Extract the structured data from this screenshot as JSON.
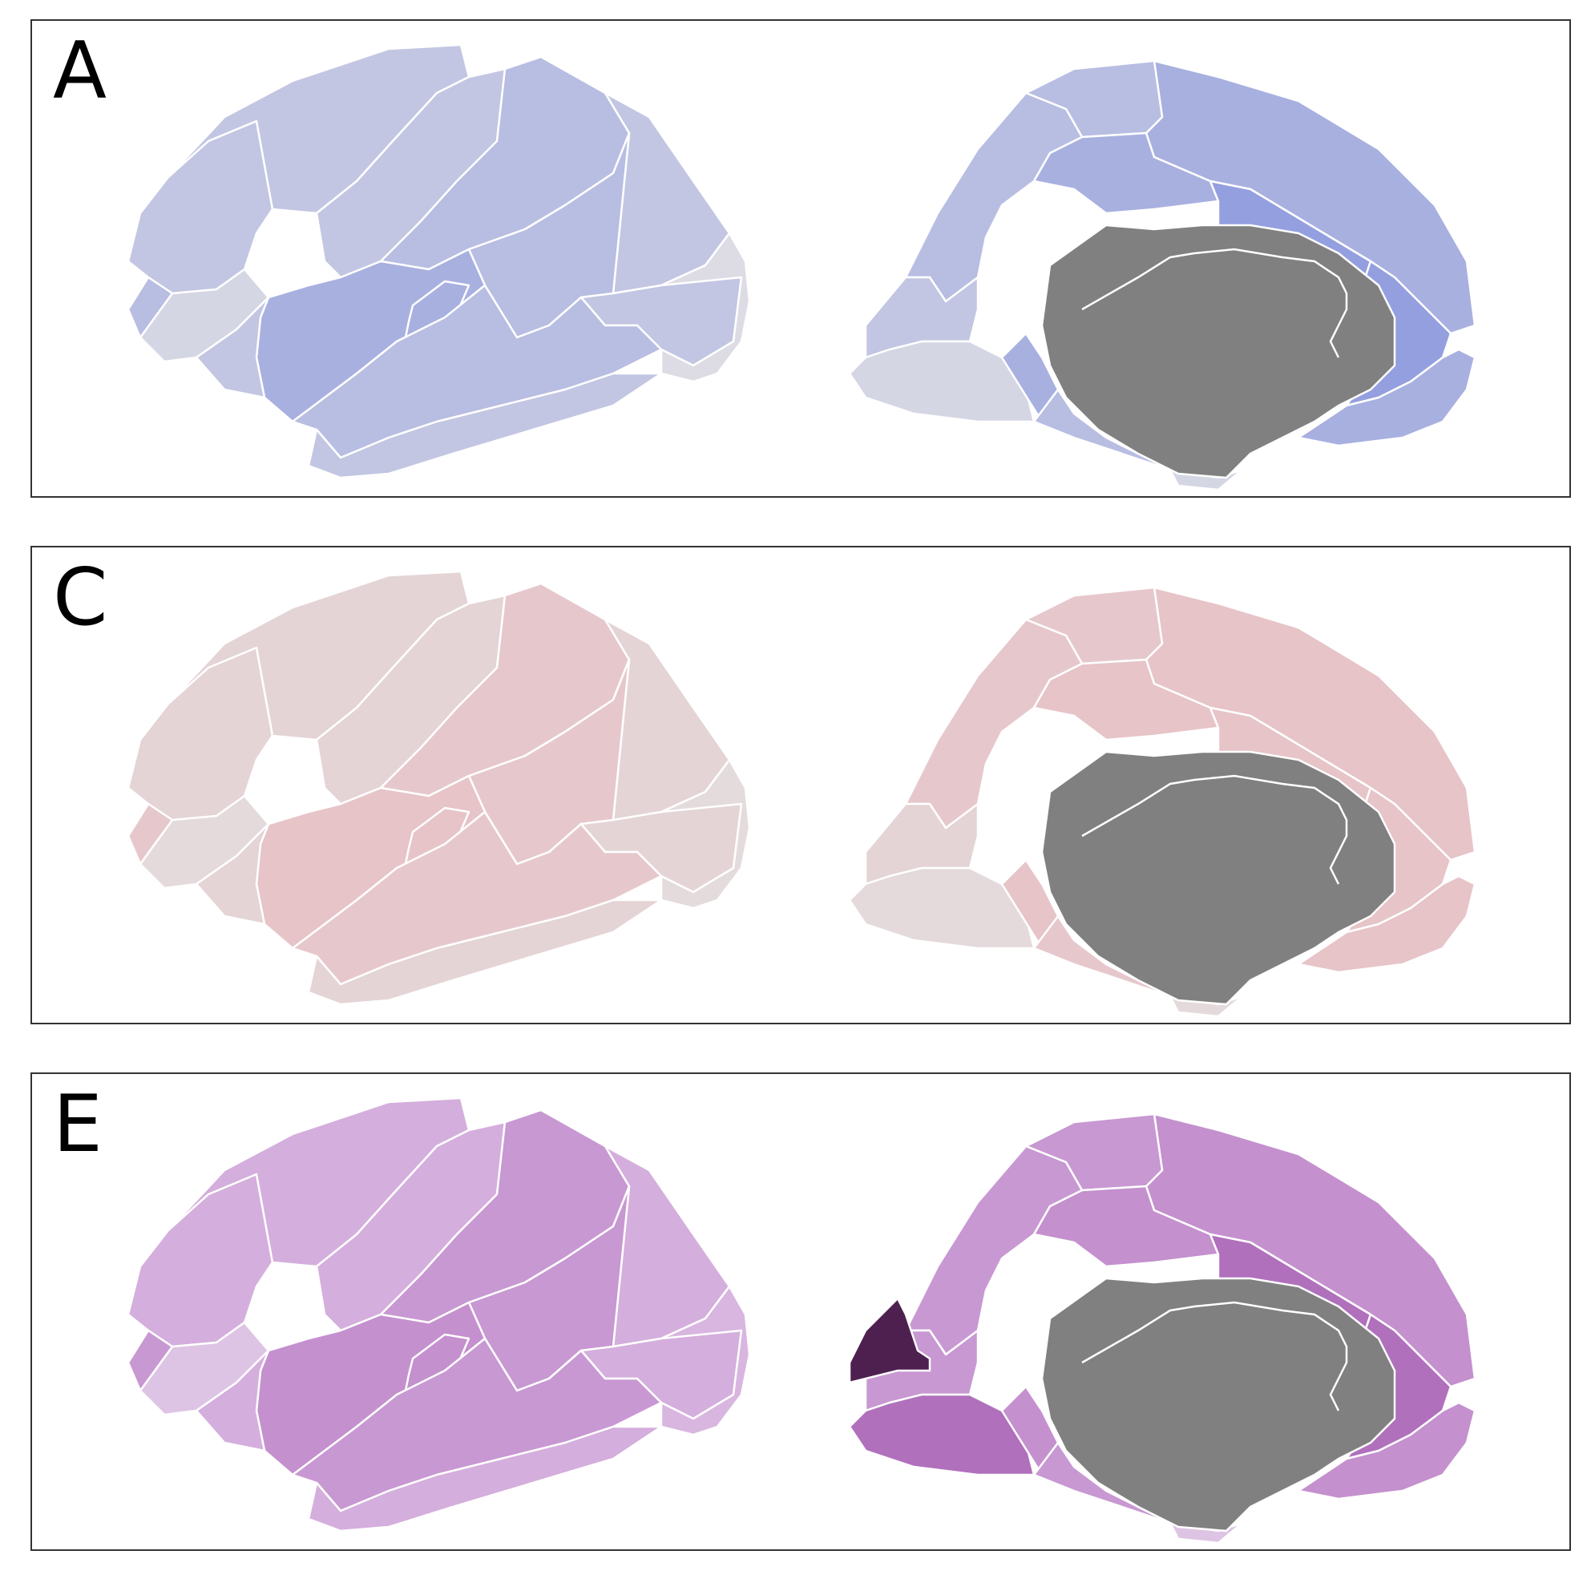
{
  "panels": [
    {
      "letter": "A",
      "palette": {
        "base": "#c2c6e2",
        "light": "#d4d6e4",
        "mid": "#b8bde2",
        "strong": "#a8b0e0",
        "stronger": "#939fdf",
        "pale": "#dddce4"
      }
    },
    {
      "letter": "C",
      "palette": {
        "base": "#e4d4d6",
        "light": "#e4dadb",
        "mid": "#e6c8cc",
        "strong": "#e6c4c8",
        "stronger": "#e6c4c8",
        "pale": "#e4dcdc"
      }
    },
    {
      "letter": "E",
      "palette": {
        "base": "#d4aedc",
        "light": "#dec4e4",
        "mid": "#c898d2",
        "strong": "#c490ce",
        "stronger": "#b070bc",
        "pale": "#d8b6e0",
        "dark": "#4e2050"
      }
    }
  ],
  "colors": {
    "medial_wall": "#808080",
    "outline": "#ffffff",
    "frame": "#333333"
  }
}
